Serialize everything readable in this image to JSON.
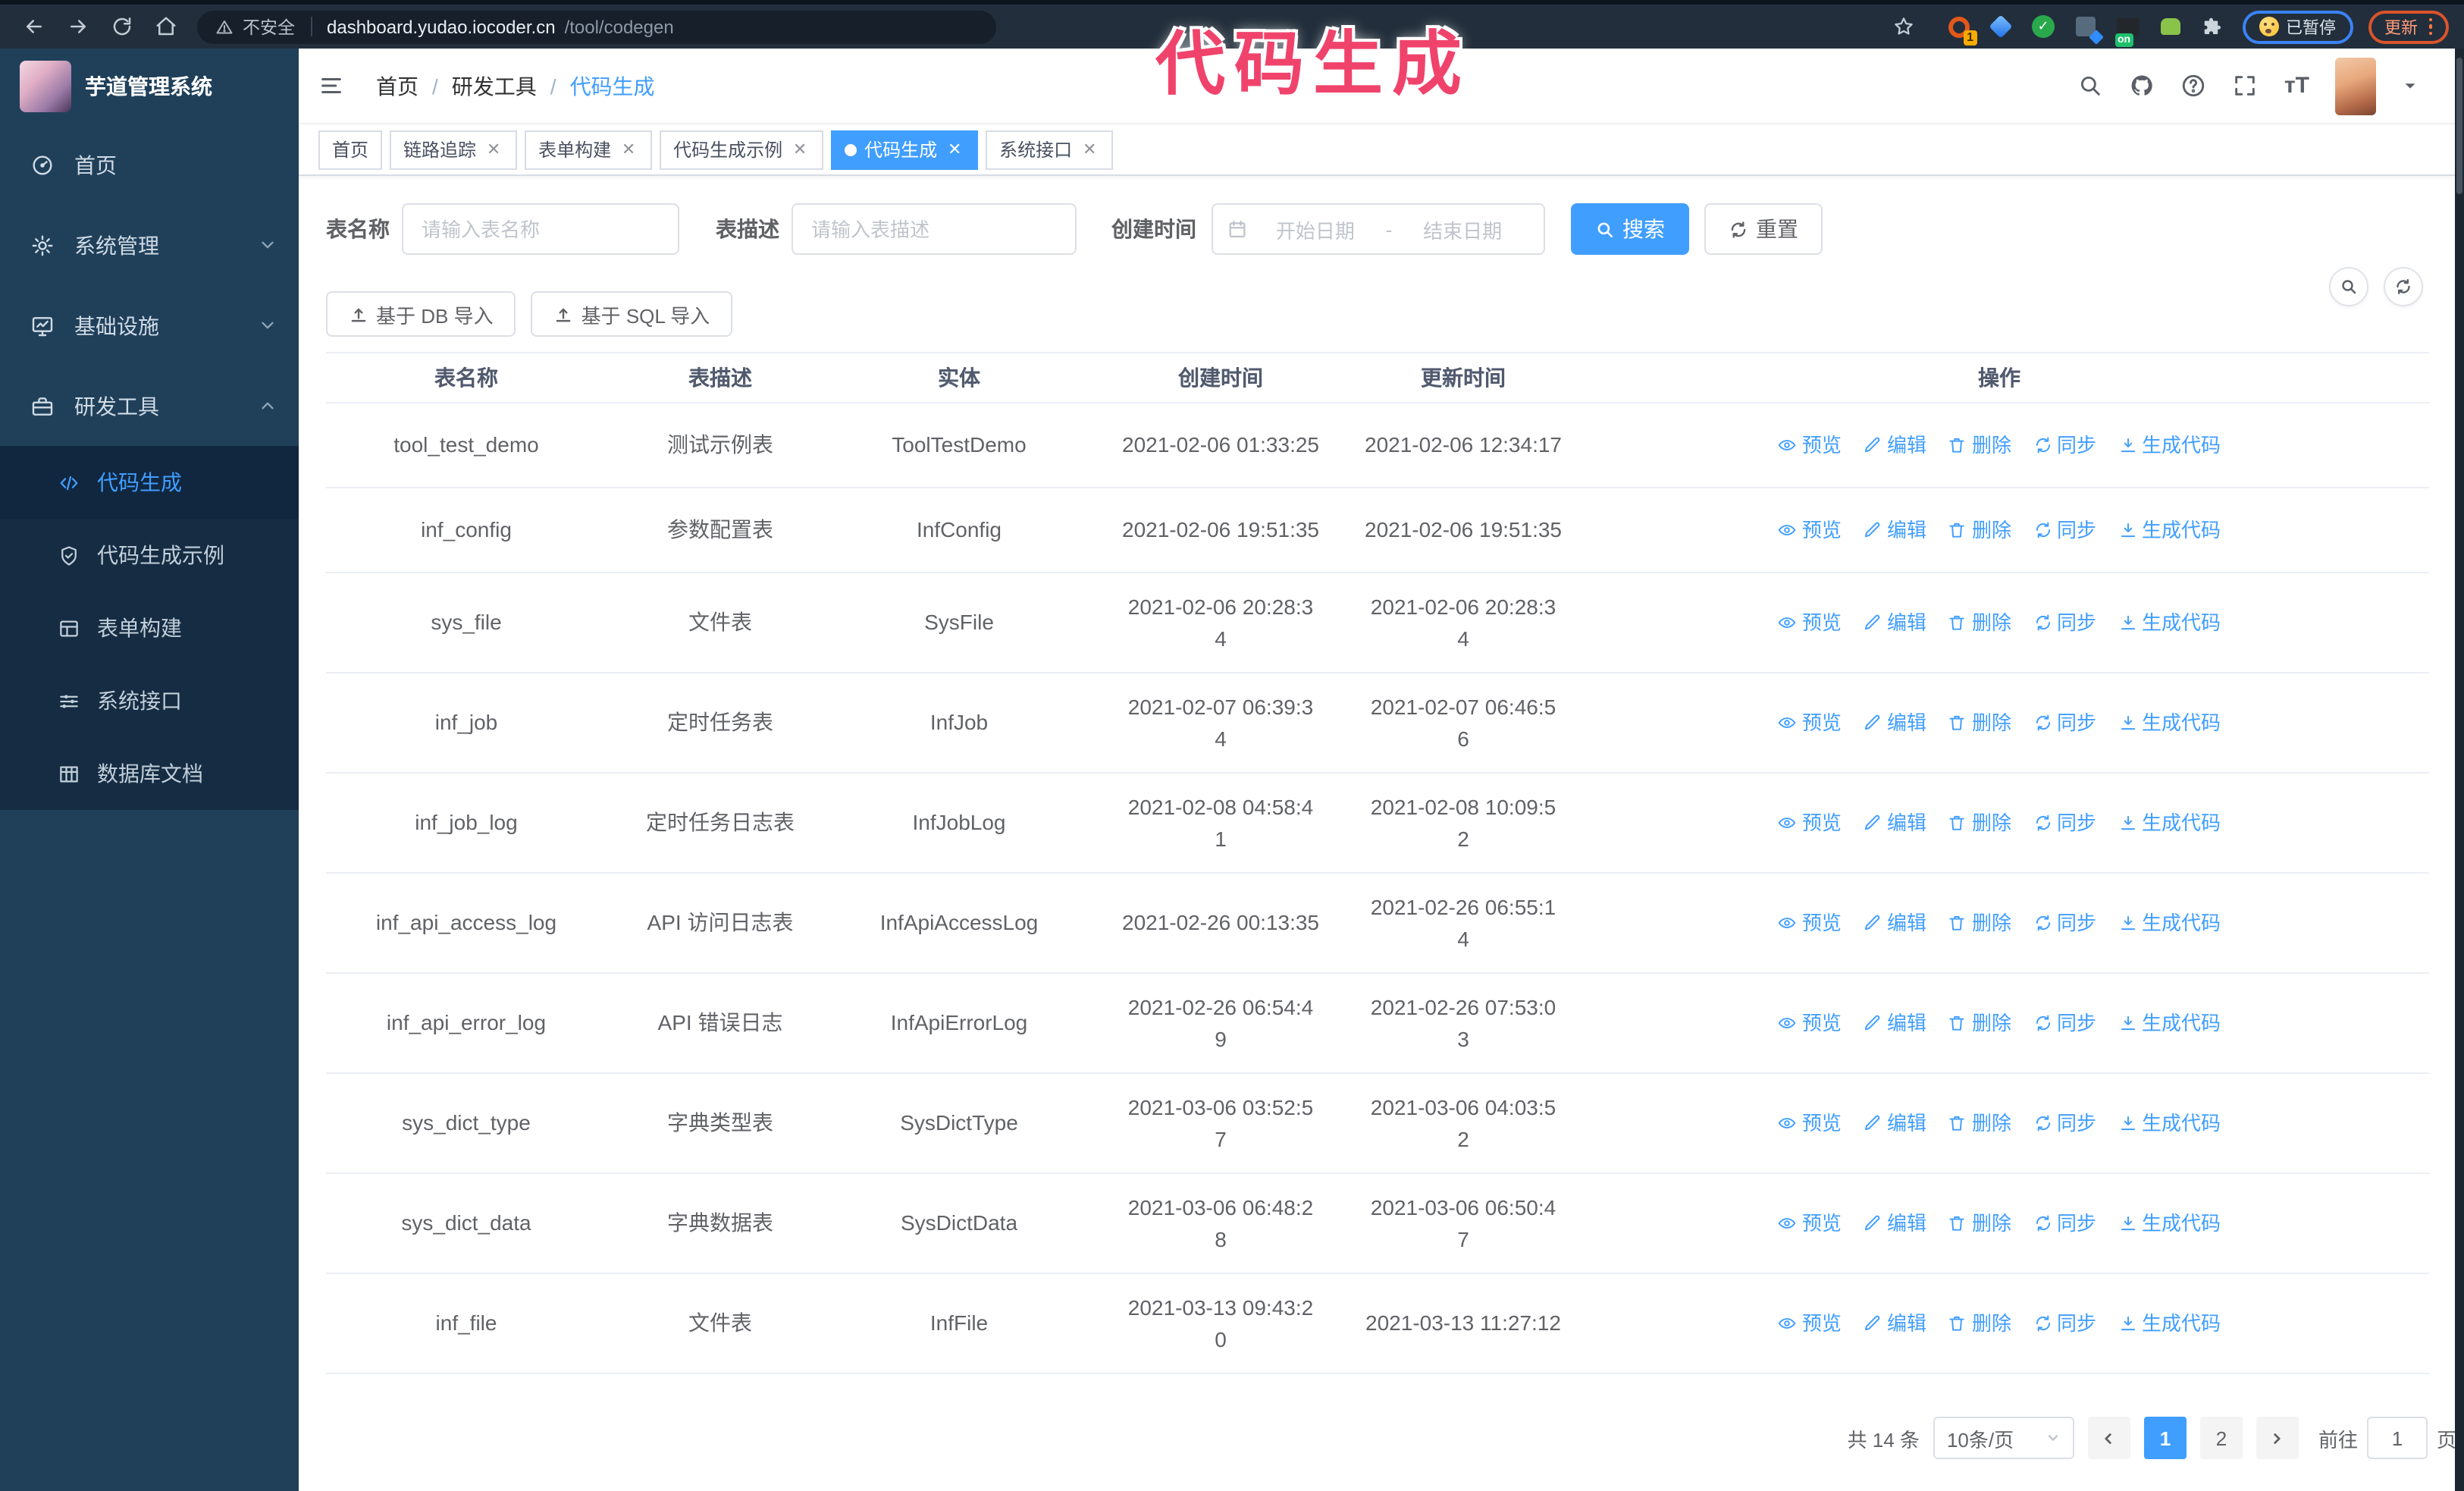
{
  "browser": {
    "secure_label": "不安全",
    "url_host": "dashboard.yudao.iocoder.cn",
    "url_path": "/tool/codegen",
    "paused_badge": "已暂停",
    "update_badge": "更新",
    "ext_badge_1": "1",
    "ext_badge_on": "on"
  },
  "annotation": {
    "text": "代码生成",
    "color": "#f0436c"
  },
  "sidebar": {
    "title": "芋道管理系统",
    "menu": [
      {
        "label": "首页",
        "icon": "dashboard-icon",
        "chevron": ""
      },
      {
        "label": "系统管理",
        "icon": "gear-icon",
        "chevron": "down"
      },
      {
        "label": "基础设施",
        "icon": "monitor-icon",
        "chevron": "down"
      },
      {
        "label": "研发工具",
        "icon": "toolbox-icon",
        "chevron": "up"
      }
    ],
    "submenu": [
      {
        "label": "代码生成",
        "icon": "code-icon",
        "active": true
      },
      {
        "label": "代码生成示例",
        "icon": "badge-check-icon",
        "active": false
      },
      {
        "label": "表单构建",
        "icon": "form-icon",
        "active": false
      },
      {
        "label": "系统接口",
        "icon": "sliders-icon",
        "active": false
      },
      {
        "label": "数据库文档",
        "icon": "table-grid-icon",
        "active": false
      }
    ]
  },
  "header": {
    "breadcrumb": [
      "首页",
      "研发工具",
      "代码生成"
    ]
  },
  "tags": [
    {
      "label": "首页",
      "closable": false,
      "active": false
    },
    {
      "label": "链路追踪",
      "closable": true,
      "active": false
    },
    {
      "label": "表单构建",
      "closable": true,
      "active": false
    },
    {
      "label": "代码生成示例",
      "closable": true,
      "active": false
    },
    {
      "label": "代码生成",
      "closable": true,
      "active": true
    },
    {
      "label": "系统接口",
      "closable": true,
      "active": false
    }
  ],
  "filters": {
    "name_label": "表名称",
    "name_placeholder": "请输入表名称",
    "desc_label": "表描述",
    "desc_placeholder": "请输入表描述",
    "time_label": "创建时间",
    "start_placeholder": "开始日期",
    "range_separator": "-",
    "end_placeholder": "结束日期",
    "search_label": "搜索",
    "reset_label": "重置"
  },
  "toolbar": {
    "import_db": "基于 DB 导入",
    "import_sql": "基于 SQL 导入"
  },
  "table": {
    "columns": [
      "表名称",
      "表描述",
      "实体",
      "创建时间",
      "更新时间",
      "操作"
    ],
    "actions": [
      {
        "label": "预览",
        "icon": "eye-icon",
        "name": "preview"
      },
      {
        "label": "编辑",
        "icon": "edit-icon",
        "name": "edit"
      },
      {
        "label": "删除",
        "icon": "delete-icon",
        "name": "delete"
      },
      {
        "label": "同步",
        "icon": "sync-icon",
        "name": "sync"
      },
      {
        "label": "生成代码",
        "icon": "download-icon",
        "name": "generate-code"
      }
    ],
    "rows": [
      {
        "name": "tool_test_demo",
        "desc": "测试示例表",
        "entity": "ToolTestDemo",
        "created": "2021-02-06 01:33:25",
        "updated": "2021-02-06 12:34:17"
      },
      {
        "name": "inf_config",
        "desc": "参数配置表",
        "entity": "InfConfig",
        "created": "2021-02-06 19:51:35",
        "updated": "2021-02-06 19:51:35"
      },
      {
        "name": "sys_file",
        "desc": "文件表",
        "entity": "SysFile",
        "created": "2021-02-06 20:28:3\n4",
        "updated": "2021-02-06 20:28:3\n4"
      },
      {
        "name": "inf_job",
        "desc": "定时任务表",
        "entity": "InfJob",
        "created": "2021-02-07 06:39:3\n4",
        "updated": "2021-02-07 06:46:5\n6"
      },
      {
        "name": "inf_job_log",
        "desc": "定时任务日志表",
        "entity": "InfJobLog",
        "created": "2021-02-08 04:58:4\n1",
        "updated": "2021-02-08 10:09:5\n2"
      },
      {
        "name": "inf_api_access_log",
        "desc": "API 访问日志表",
        "entity": "InfApiAccessLog",
        "created": "2021-02-26 00:13:35",
        "updated": "2021-02-26 06:55:1\n4"
      },
      {
        "name": "inf_api_error_log",
        "desc": "API 错误日志",
        "entity": "InfApiErrorLog",
        "created": "2021-02-26 06:54:4\n9",
        "updated": "2021-02-26 07:53:0\n3"
      },
      {
        "name": "sys_dict_type",
        "desc": "字典类型表",
        "entity": "SysDictType",
        "created": "2021-03-06 03:52:5\n7",
        "updated": "2021-03-06 04:03:5\n2"
      },
      {
        "name": "sys_dict_data",
        "desc": "字典数据表",
        "entity": "SysDictData",
        "created": "2021-03-06 06:48:2\n8",
        "updated": "2021-03-06 06:50:4\n7"
      },
      {
        "name": "inf_file",
        "desc": "文件表",
        "entity": "InfFile",
        "created": "2021-03-13 09:43:2\n0",
        "updated": "2021-03-13 11:27:12"
      }
    ]
  },
  "pagination": {
    "total": "共 14 条",
    "page_size": "10条/页",
    "pages": [
      "1",
      "2"
    ],
    "active_page": "1",
    "goto_label": "前往",
    "goto_value": "1",
    "page_suffix": "页"
  },
  "colors": {
    "accent": "#409eff",
    "sidebar_bg": "#20405a",
    "submenu_bg": "#152c42"
  }
}
